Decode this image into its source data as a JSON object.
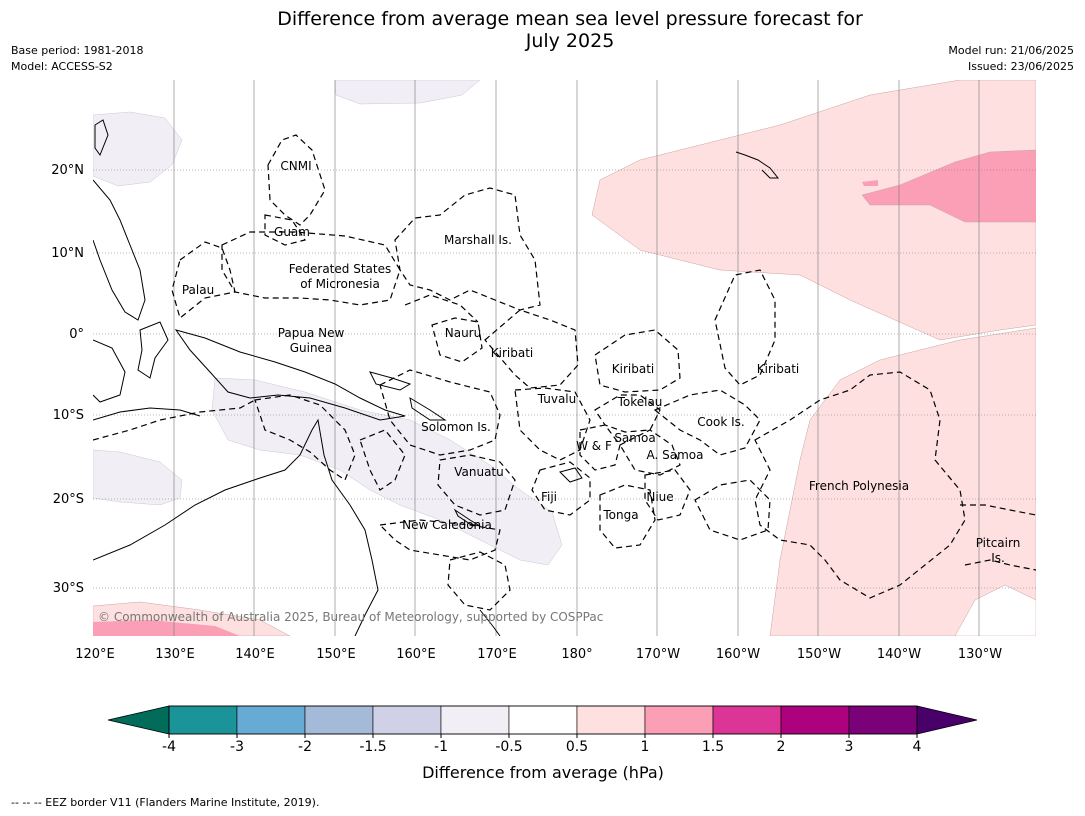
{
  "title_line1": "Difference from average mean sea level pressure forecast for",
  "title_line2": "July 2025",
  "base_period": "Base period: 1981-2018",
  "model": "Model: ACCESS-S2",
  "model_run": "Model run: 21/06/2025",
  "issued": "Issued: 23/06/2025",
  "copyright": "© Commonwealth of Australia 2025, Bureau of Meteorology, supported by COSPPac",
  "footer": "--  --  -- EEZ border V11 (Flanders Marine Institute, 2019).",
  "lon_labels": [
    "120°E",
    "130°E",
    "140°E",
    "150°E",
    "160°E",
    "170°E",
    "180°",
    "170°W",
    "160°W",
    "150°W",
    "140°W",
    "130°W"
  ],
  "lat_labels": [
    "20°N",
    "10°N",
    "0°",
    "10°S",
    "20°S",
    "30°S"
  ],
  "regions": [
    "CNMI",
    "Guam",
    "Marshall Is.",
    "Federated States",
    "of Micronesia",
    "Palau",
    "Papua New",
    "Guinea",
    "Nauru",
    "Kiribati",
    "Kiribati",
    "Kiribati",
    "Tuvalu",
    "Tokelau",
    "Solomon Is.",
    "Cook Is.",
    "Samoa",
    "W & F",
    "A. Samoa",
    "Vanuatu",
    "Fiji",
    "Niue",
    "French Polynesia",
    "Tonga",
    "New Caledonia",
    "Pitcairn",
    "Is."
  ],
  "colorbar": {
    "label": "Difference from average (hPa)",
    "ticks": [
      "-4",
      "-3",
      "-2",
      "-1.5",
      "-1",
      "-0.5",
      "0.5",
      "1",
      "1.5",
      "2",
      "3",
      "4"
    ],
    "colors": [
      "#1a9399",
      "#67abd4",
      "#a5b9d9",
      "#d0d1e6",
      "#f1eef5",
      "#ffffff",
      "#fde0df",
      "#fa9fb5",
      "#dd3497",
      "#ae017e",
      "#7a0177"
    ],
    "under_color": "#016c59",
    "over_color": "#49006a"
  },
  "colors": {
    "pink_light": "#fde0df",
    "pink_mid": "#fa9fb5",
    "lavender": "#f1eef5"
  }
}
